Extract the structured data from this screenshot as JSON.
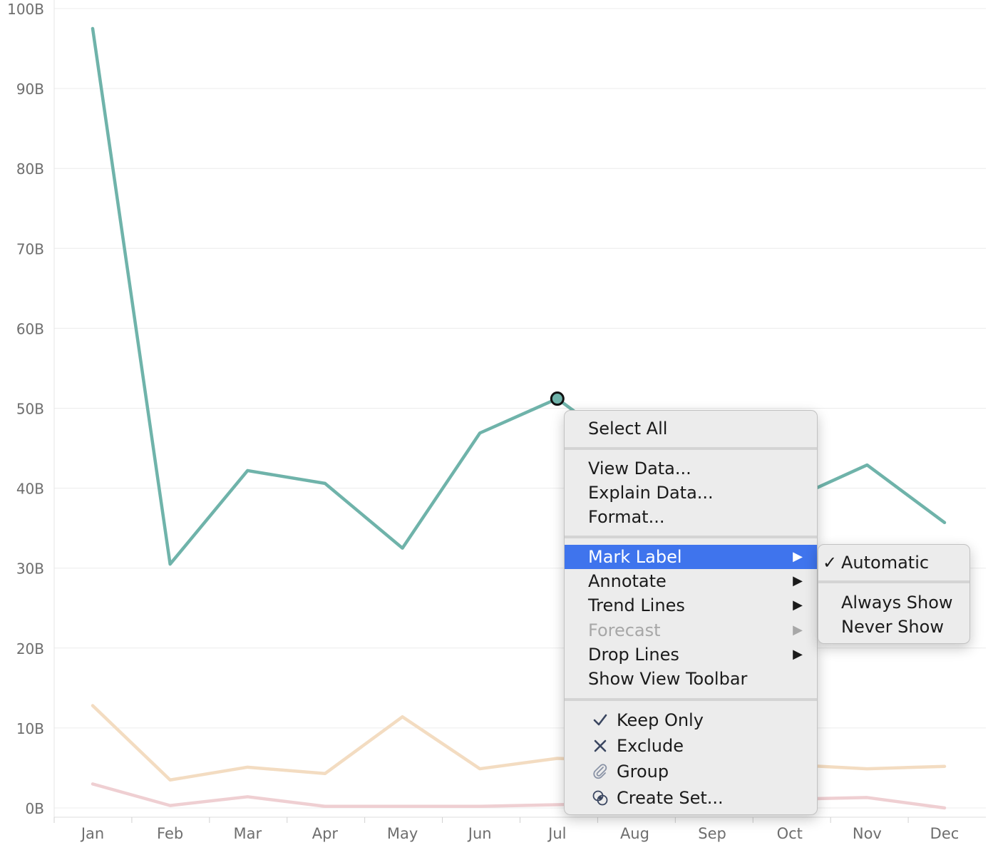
{
  "chart_data": {
    "type": "line",
    "categories": [
      "Jan",
      "Feb",
      "Mar",
      "Apr",
      "May",
      "Jun",
      "Jul",
      "Aug",
      "Sep",
      "Oct",
      "Nov",
      "Dec"
    ],
    "y_ticks": [
      "0B",
      "10B",
      "20B",
      "30B",
      "40B",
      "50B",
      "60B",
      "70B",
      "80B",
      "90B",
      "100B"
    ],
    "ylim": [
      0,
      100
    ],
    "grid": true,
    "series": [
      {
        "values": [
          97.5,
          30.5,
          42.2,
          40.6,
          32.5,
          46.9,
          51.2,
          44.0,
          40.5,
          38.5,
          42.9,
          35.7
        ],
        "color": "#6fb3aa"
      },
      {
        "values": [
          12.8,
          3.5,
          5.1,
          4.3,
          11.4,
          4.9,
          6.2,
          5.8,
          5.9,
          5.4,
          4.9,
          5.2
        ],
        "color": "#f3dcc1"
      },
      {
        "values": [
          3.0,
          0.3,
          1.4,
          0.2,
          0.2,
          0.2,
          0.4,
          0.6,
          0.9,
          1.1,
          1.3,
          0.0
        ],
        "color": "#efcfd2"
      }
    ],
    "selected_point": {
      "series": 0,
      "category": "Jul"
    }
  },
  "context_menu": {
    "items": {
      "select_all": "Select All",
      "view_data": "View Data...",
      "explain_data": "Explain Data...",
      "format": "Format...",
      "mark_label": "Mark Label",
      "annotate": "Annotate",
      "trend_lines": "Trend Lines",
      "forecast": "Forecast",
      "drop_lines": "Drop Lines",
      "show_view_toolbar": "Show View Toolbar",
      "keep_only": "Keep Only",
      "exclude": "Exclude",
      "group": "Group",
      "create_set": "Create Set..."
    },
    "highlight_color": "#3f74ed"
  },
  "submenu": {
    "automatic": "Automatic",
    "always_show": "Always Show",
    "never_show": "Never Show",
    "checked": "✓"
  }
}
